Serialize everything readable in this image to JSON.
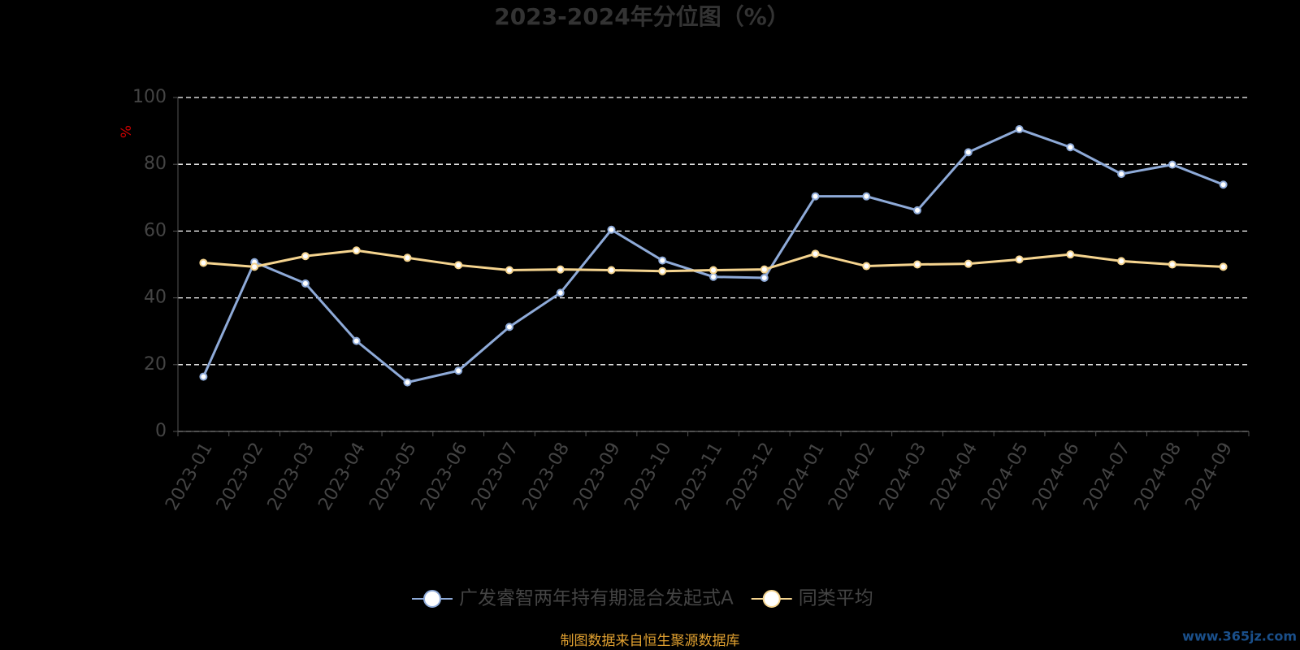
{
  "chart_data": {
    "type": "line",
    "title": "2023-2024年分位图（%）",
    "y_label": "%",
    "categories": [
      "2023-01",
      "2023-02",
      "2023-03",
      "2023-04",
      "2023-05",
      "2023-06",
      "2023-07",
      "2023-08",
      "2023-09",
      "2023-10",
      "2023-11",
      "2023-12",
      "2024-01",
      "2024-02",
      "2024-03",
      "2024-04",
      "2024-05",
      "2024-06",
      "2024-07",
      "2024-08",
      "2024-09"
    ],
    "series": [
      {
        "name": "广发睿智两年持有期混合发起式A",
        "color": "#8eaad8",
        "values": [
          16.4,
          50.7,
          44.3,
          27.1,
          14.7,
          18.2,
          31.3,
          41.5,
          60.4,
          51.2,
          46.3,
          46,
          70.4,
          70.4,
          66.2,
          83.6,
          90.5,
          85.1,
          77.1,
          79.9,
          73.9
        ]
      },
      {
        "name": "同类平均",
        "color": "#f5d48f",
        "values": [
          50.5,
          49.3,
          52.5,
          54.2,
          52,
          49.8,
          48.3,
          48.5,
          48.3,
          48,
          48.3,
          48.5,
          53.2,
          49.5,
          50,
          50.2,
          51.5,
          53,
          51,
          50,
          49.3
        ]
      }
    ],
    "ylim": [
      0,
      100
    ],
    "yticks": [
      0,
      20,
      40,
      60,
      80,
      100
    ],
    "grid": true,
    "source": "制图数据来自恒生聚源数据库",
    "watermark": "www.365jz.com"
  }
}
